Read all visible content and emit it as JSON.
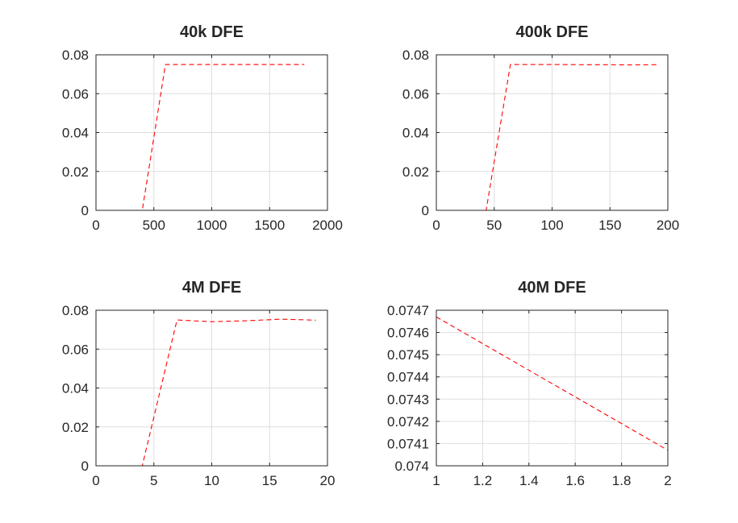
{
  "chart_data": [
    {
      "type": "line",
      "title": "40k DFE",
      "xlim": [
        0,
        2000
      ],
      "ylim": [
        0,
        0.08
      ],
      "xticks": [
        0,
        500,
        1000,
        1500,
        2000
      ],
      "xtick_labels": [
        "0",
        "500",
        "1000",
        "1500",
        "2000"
      ],
      "yticks": [
        0,
        0.02,
        0.04,
        0.06,
        0.08
      ],
      "ytick_labels": [
        "0",
        "0.02",
        "0.04",
        "0.06",
        "0.08"
      ],
      "grid": true,
      "series": [
        {
          "color": "#ff0000",
          "line_style": "dashed",
          "x": [
            0,
            200,
            400,
            600,
            800,
            1000,
            1200,
            1400,
            1600,
            1800
          ],
          "y": [
            0,
            0,
            0,
            0.075,
            0.075,
            0.075,
            0.075,
            0.075,
            0.075,
            0.075
          ]
        }
      ]
    },
    {
      "type": "line",
      "title": "400k DFE",
      "xlim": [
        0,
        200
      ],
      "ylim": [
        0,
        0.08
      ],
      "xticks": [
        0,
        50,
        100,
        150,
        200
      ],
      "xtick_labels": [
        "0",
        "50",
        "100",
        "150",
        "200"
      ],
      "yticks": [
        0,
        0.02,
        0.04,
        0.06,
        0.08
      ],
      "ytick_labels": [
        "0",
        "0.02",
        "0.04",
        "0.06",
        "0.08"
      ],
      "grid": true,
      "series": [
        {
          "color": "#ff0000",
          "line_style": "dashed",
          "x": [
            0,
            22,
            43,
            64,
            85,
            106,
            127,
            148,
            169,
            190
          ],
          "y": [
            0,
            0,
            0,
            0.075,
            0.075,
            0.075,
            0.0749,
            0.0749,
            0.0748,
            0.0749
          ]
        }
      ]
    },
    {
      "type": "line",
      "title": "4M DFE",
      "xlim": [
        0,
        20
      ],
      "ylim": [
        0,
        0.08
      ],
      "xticks": [
        0,
        5,
        10,
        15,
        20
      ],
      "xtick_labels": [
        "0",
        "5",
        "10",
        "15",
        "20"
      ],
      "yticks": [
        0,
        0.02,
        0.04,
        0.06,
        0.08
      ],
      "ytick_labels": [
        "0",
        "0.02",
        "0.04",
        "0.06",
        "0.08"
      ],
      "grid": true,
      "series": [
        {
          "color": "#ff0000",
          "line_style": "dashed",
          "x": [
            1,
            4,
            7,
            10,
            13,
            16,
            19
          ],
          "y": [
            0,
            0,
            0.075,
            0.0741,
            0.0746,
            0.0754,
            0.0749
          ]
        }
      ]
    },
    {
      "type": "line",
      "title": "40M DFE",
      "xlim": [
        1,
        2
      ],
      "ylim": [
        0.074,
        0.0747
      ],
      "xticks": [
        1,
        1.2,
        1.4,
        1.6,
        1.8,
        2
      ],
      "xtick_labels": [
        "1",
        "1.2",
        "1.4",
        "1.6",
        "1.8",
        "2"
      ],
      "yticks": [
        0.074,
        0.0741,
        0.0742,
        0.0743,
        0.0744,
        0.0745,
        0.0746,
        0.0747
      ],
      "ytick_labels": [
        "0.074",
        "0.0741",
        "0.0742",
        "0.0743",
        "0.0744",
        "0.0745",
        "0.0746",
        "0.0747"
      ],
      "grid": true,
      "series": [
        {
          "color": "#ff0000",
          "line_style": "dashed",
          "x": [
            1,
            2
          ],
          "y": [
            0.07467,
            0.07407
          ]
        }
      ]
    }
  ]
}
